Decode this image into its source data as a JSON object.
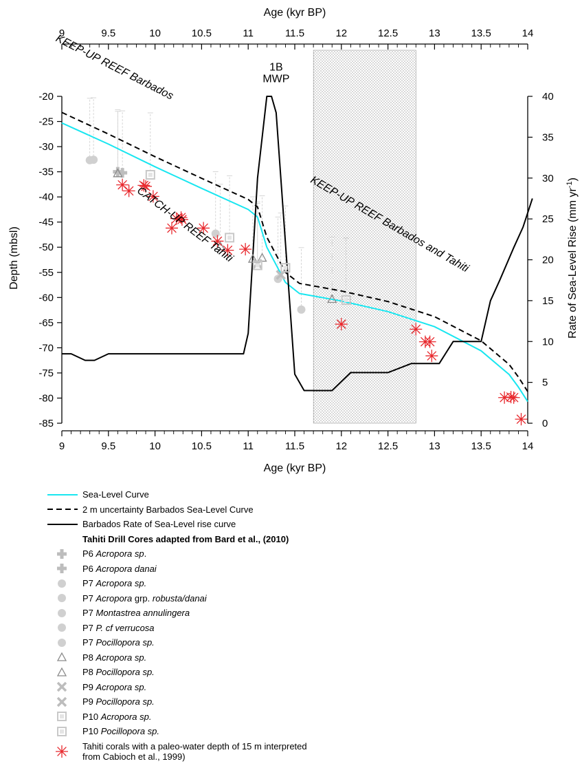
{
  "chart_data": {
    "type": "line",
    "title": "",
    "xlabel_top": "Age (kyr BP)",
    "xlabel_bottom": "Age (kyr BP)",
    "ylabel_left": "Depth (mbsl)",
    "ylabel_right": "Rate of Sea-Level Rise (mm yr",
    "ylabel_right_sup": "-1",
    "ylabel_right_close": ")",
    "xlim": [
      9,
      14
    ],
    "ylim_left": [
      -85,
      -20
    ],
    "ylim_right": [
      0,
      40
    ],
    "x_ticks": [
      "9",
      "9.5",
      "10",
      "10.5",
      "11",
      "11.5",
      "12",
      "12.5",
      "13",
      "13.5",
      "14"
    ],
    "y_ticks_left": [
      "-20",
      "-25",
      "-30",
      "-35",
      "-40",
      "-45",
      "-50",
      "-55",
      "-60",
      "-65",
      "-70",
      "-75",
      "-80",
      "-85"
    ],
    "y_ticks_right": [
      "0",
      "5",
      "10",
      "15",
      "20",
      "25",
      "30",
      "35",
      "40"
    ],
    "grid": false,
    "shaded_interval": [
      11.7,
      12.8
    ],
    "annotations": [
      {
        "text": "MWP",
        "x": 11.3,
        "y": -17.2
      },
      {
        "text": "1B",
        "x": 11.3,
        "y": -14.9
      },
      {
        "text": "KEEP-UP REEF Barbados",
        "x": 9.55,
        "y": -14.8,
        "rotate": 27
      },
      {
        "text": "KEEP-UP REEF Barbados and Tahiti",
        "x": 12.5,
        "y": -46,
        "rotate": 30
      },
      {
        "text": "CATCH-UP REEF Tahiti",
        "x": 10.3,
        "y": -46,
        "rotate": 37
      }
    ],
    "series": [
      {
        "name": "Sea-Level Curve",
        "axis": "left",
        "color": "#18e6f0",
        "x": [
          9,
          9.5,
          10,
          10.5,
          11,
          11.1,
          11.2,
          11.4,
          11.55,
          12,
          12.5,
          13,
          13.5,
          13.8,
          13.9,
          14
        ],
        "y": [
          -25.3,
          -29.5,
          -34,
          -38.3,
          -42.5,
          -44,
          -50,
          -57,
          -59.2,
          -60.7,
          -62.8,
          -65.8,
          -70.6,
          -75.3,
          -77.8,
          -80.7
        ]
      },
      {
        "name": "2 m uncertainty Barbados Sea-Level Curve",
        "axis": "left",
        "color": "#000000",
        "dash": true,
        "x": [
          9,
          9.5,
          10,
          10.5,
          11,
          11.1,
          11.2,
          11.4,
          11.55,
          12,
          12.5,
          13,
          13.5,
          13.8,
          13.9,
          14
        ],
        "y": [
          -23.2,
          -27.5,
          -32,
          -36.3,
          -40.5,
          -42,
          -48,
          -55,
          -57.2,
          -58.7,
          -60.8,
          -63.8,
          -68.6,
          -73.3,
          -75.8,
          -78.7
        ]
      },
      {
        "name": "Barbados Rate of Sea-Level rise curve",
        "axis": "right",
        "color": "#000000",
        "x": [
          9,
          9.1,
          9.25,
          9.35,
          9.5,
          10,
          10.5,
          10.95,
          11,
          11.1,
          11.2,
          11.25,
          11.3,
          11.35,
          11.5,
          11.6,
          11.7,
          11.9,
          12.1,
          12.5,
          12.75,
          13.05,
          13.2,
          13.5,
          13.6,
          13.7,
          13.85,
          13.95,
          14.05
        ],
        "y": [
          8.5,
          8.5,
          7.7,
          7.7,
          8.5,
          8.5,
          8.5,
          8.5,
          11,
          30,
          40,
          40,
          38,
          30,
          6,
          4,
          4,
          4,
          6.2,
          6.2,
          7.3,
          7.3,
          10,
          10,
          15,
          17.5,
          21.5,
          24,
          27.5
        ]
      }
    ],
    "coral_groups": [
      {
        "id": "P6",
        "marker": "plus",
        "points": [
          [
            9.6,
            -35
          ],
          [
            9.65,
            -35.2
          ]
        ]
      },
      {
        "id": "P7",
        "marker": "circle",
        "points": [
          [
            9.3,
            -32.7
          ],
          [
            9.34,
            -32.6
          ],
          [
            10.65,
            -47.3
          ],
          [
            11.32,
            -56.3
          ],
          [
            11.57,
            -62.4
          ]
        ]
      },
      {
        "id": "P8",
        "marker": "triangle",
        "points": [
          [
            9.6,
            -35.3
          ],
          [
            10.7,
            -49.8
          ],
          [
            11.05,
            -52.3
          ],
          [
            11.15,
            -52.1
          ],
          [
            11.9,
            -60.3
          ]
        ]
      },
      {
        "id": "P9",
        "marker": "cross",
        "points": [
          [
            11.1,
            -53.3
          ],
          [
            11.35,
            -55.5
          ]
        ]
      },
      {
        "id": "P10",
        "marker": "square",
        "points": [
          [
            9.95,
            -35.6
          ],
          [
            10.8,
            -48.1
          ],
          [
            11.1,
            -53.6
          ],
          [
            11.4,
            -54.1
          ],
          [
            12.05,
            -60.5
          ]
        ]
      },
      {
        "id": "Cabioch",
        "marker": "star",
        "color": "#e8282d",
        "points": [
          [
            9.65,
            -37.6
          ],
          [
            9.72,
            -38.8
          ],
          [
            9.88,
            -37.7
          ],
          [
            9.9,
            -37.9
          ],
          [
            9.98,
            -39.9
          ],
          [
            10.18,
            -46.2
          ],
          [
            10.23,
            -44.3
          ],
          [
            10.28,
            -44.1
          ],
          [
            10.29,
            -44.5
          ],
          [
            10.52,
            -46.2
          ],
          [
            10.67,
            -48.8
          ],
          [
            10.78,
            -50.6
          ],
          [
            10.97,
            -50.4
          ],
          [
            12,
            -65.3
          ],
          [
            12.8,
            -66.3
          ],
          [
            12.9,
            -68.8
          ],
          [
            12.95,
            -68.8
          ],
          [
            12.97,
            -71.6
          ],
          [
            13.75,
            -79.9
          ],
          [
            13.82,
            -79.8
          ],
          [
            13.85,
            -79.9
          ],
          [
            13.93,
            -84.2
          ]
        ]
      }
    ]
  },
  "legend": {
    "sea_level": "Sea-Level Curve",
    "uncertainty": "2 m uncertainty Barbados Sea-Level Curve",
    "rate": "Barbados Rate of Sea-Level rise curve",
    "heading": "Tahiti Drill Cores adapted from Bard et al., (2010)",
    "items": [
      {
        "marker": "plus",
        "code": "P6",
        "taxon": "Acropora sp",
        "suffix": "."
      },
      {
        "marker": "plus",
        "code": "P6",
        "taxon": "Acropora danai",
        "suffix": ""
      },
      {
        "marker": "circle",
        "code": "P7",
        "taxon": "Acropora sp.",
        "suffix": ""
      },
      {
        "marker": "circle",
        "code": "P7",
        "taxon_pre": "Acropora",
        "mid": " grp. ",
        "taxon": "robusta/danai",
        "suffix": ""
      },
      {
        "marker": "circle",
        "code": "P7",
        "taxon": "Montastrea annulingera",
        "suffix": ""
      },
      {
        "marker": "circle",
        "code": "P7",
        "taxon": "P. cf verrucosa",
        "suffix": ""
      },
      {
        "marker": "circle",
        "code": "P7",
        "taxon": "Pocillopora sp.",
        "suffix": ""
      },
      {
        "marker": "triangle",
        "code": "P8",
        "taxon": "Acropora sp.",
        "suffix": ""
      },
      {
        "marker": "triangle",
        "code": "P8",
        "taxon": "Pocillopora sp.",
        "suffix": ""
      },
      {
        "marker": "cross",
        "code": "P9",
        "taxon": "Acropora sp.",
        "suffix": ""
      },
      {
        "marker": "cross",
        "code": "P9",
        "taxon": "Pocillopora sp.",
        "suffix": ""
      },
      {
        "marker": "square",
        "code": "P10",
        "taxon": "Acropora sp.",
        "suffix": ""
      },
      {
        "marker": "square",
        "code": "P10",
        "taxon": "Pocillopora sp.",
        "suffix": ""
      }
    ],
    "cabioch_line1": "Tahiti corals with a paleo-water depth of 15 m interpreted",
    "cabioch_line2": "from Cabioch et al., 1999)"
  }
}
